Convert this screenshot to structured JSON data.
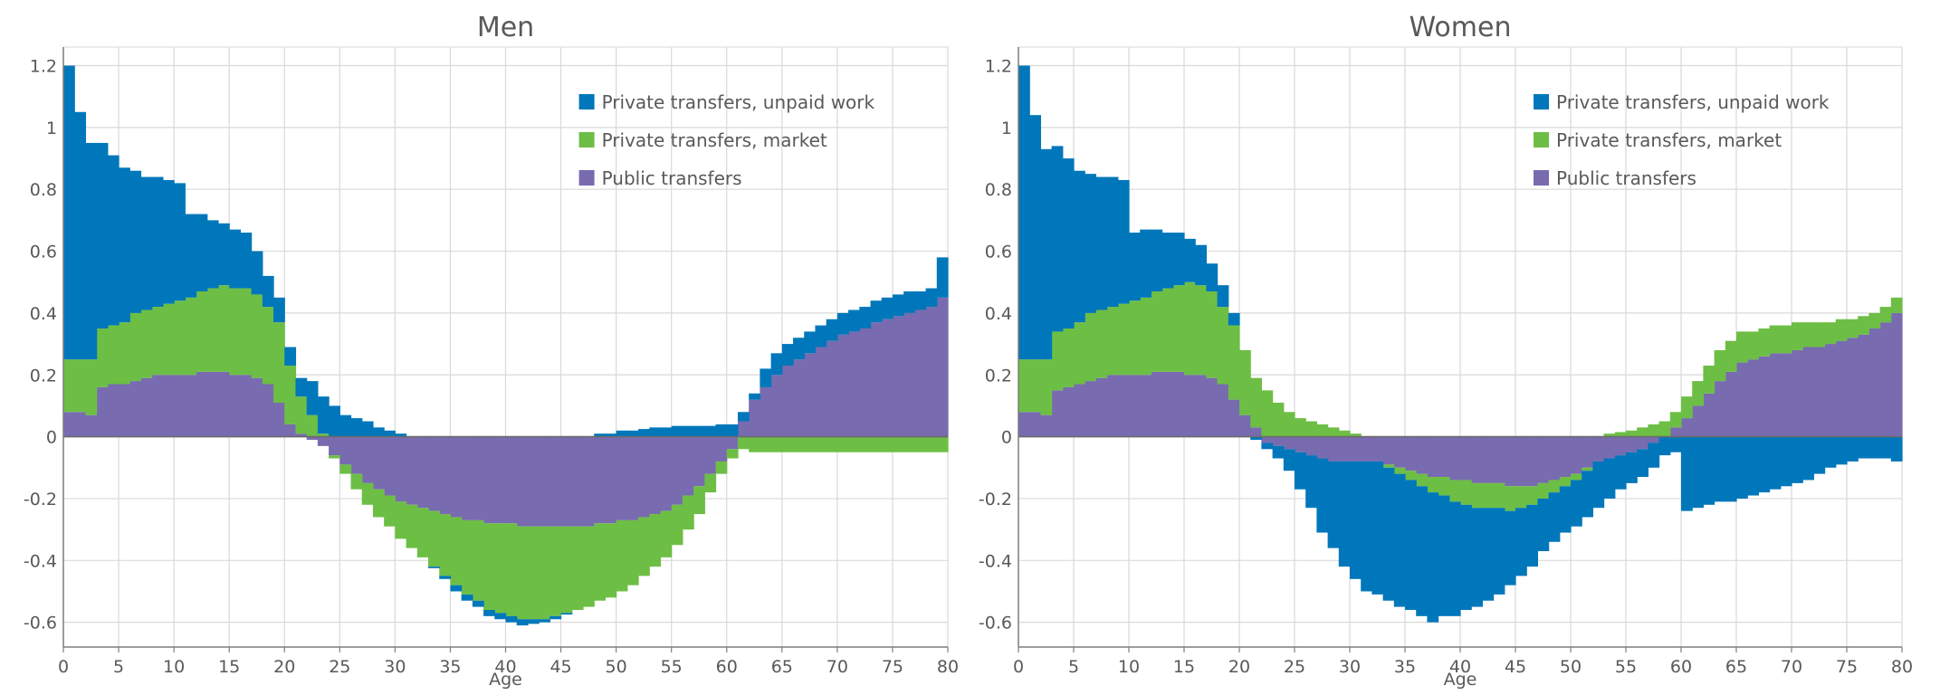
{
  "colors": {
    "unpaid": "#0077bb",
    "market": "#6dbe45",
    "public": "#786bb0",
    "grid": "#d9d9d9",
    "axis": "#7f7f7f",
    "text": "#595959"
  },
  "chart_data": [
    {
      "type": "bar",
      "stacked": true,
      "title": "Men",
      "xlabel": "Age",
      "ylabel": "",
      "xlim": [
        0,
        80
      ],
      "ylim": [
        -0.68,
        1.26
      ],
      "xticks": [
        "0",
        "5",
        "10",
        "15",
        "20",
        "25",
        "30",
        "35",
        "40",
        "45",
        "50",
        "55",
        "60",
        "65",
        "70",
        "75",
        "80"
      ],
      "yticks": [
        "1.2",
        "1",
        "0.8",
        "0.6",
        "0.4",
        "0.2",
        "0",
        "-0.2",
        "-0.4",
        "-0.6"
      ],
      "grid": true,
      "legend": "top-right",
      "x": [
        0,
        1,
        2,
        3,
        4,
        5,
        6,
        7,
        8,
        9,
        10,
        11,
        12,
        13,
        14,
        15,
        16,
        17,
        18,
        19,
        20,
        21,
        22,
        23,
        24,
        25,
        26,
        27,
        28,
        29,
        30,
        31,
        32,
        33,
        34,
        35,
        36,
        37,
        38,
        39,
        40,
        41,
        42,
        43,
        44,
        45,
        46,
        47,
        48,
        49,
        50,
        51,
        52,
        53,
        54,
        55,
        56,
        57,
        58,
        59,
        60,
        61,
        62,
        63,
        64,
        65,
        66,
        67,
        68,
        69,
        70,
        71,
        72,
        73,
        74,
        75,
        76,
        77,
        78,
        79
      ],
      "series": [
        {
          "name": "Public transfers",
          "color_key": "public",
          "values": [
            0.08,
            0.08,
            0.07,
            0.16,
            0.17,
            0.17,
            0.18,
            0.19,
            0.2,
            0.2,
            0.2,
            0.2,
            0.21,
            0.21,
            0.21,
            0.2,
            0.2,
            0.19,
            0.17,
            0.11,
            0.04,
            0.01,
            -0.01,
            -0.03,
            -0.06,
            -0.09,
            -0.12,
            -0.15,
            -0.17,
            -0.19,
            -0.21,
            -0.22,
            -0.23,
            -0.24,
            -0.25,
            -0.26,
            -0.27,
            -0.27,
            -0.28,
            -0.28,
            -0.28,
            -0.29,
            -0.29,
            -0.29,
            -0.29,
            -0.29,
            -0.29,
            -0.29,
            -0.28,
            -0.28,
            -0.27,
            -0.27,
            -0.26,
            -0.25,
            -0.24,
            -0.22,
            -0.19,
            -0.16,
            -0.12,
            -0.08,
            -0.04,
            0.05,
            0.12,
            0.16,
            0.2,
            0.23,
            0.25,
            0.27,
            0.29,
            0.31,
            0.33,
            0.34,
            0.35,
            0.37,
            0.38,
            0.39,
            0.4,
            0.41,
            0.42,
            0.45
          ]
        },
        {
          "name": "Private transfers, market",
          "color_key": "market",
          "values": [
            0.17,
            0.17,
            0.18,
            0.19,
            0.19,
            0.2,
            0.22,
            0.22,
            0.22,
            0.23,
            0.24,
            0.25,
            0.26,
            0.27,
            0.28,
            0.28,
            0.28,
            0.27,
            0.25,
            0.26,
            0.19,
            0.12,
            0.07,
            0.01,
            -0.01,
            -0.03,
            -0.05,
            -0.07,
            -0.09,
            -0.1,
            -0.12,
            -0.14,
            -0.16,
            -0.18,
            -0.2,
            -0.22,
            -0.24,
            -0.26,
            -0.28,
            -0.29,
            -0.3,
            -0.3,
            -0.3,
            -0.3,
            -0.29,
            -0.28,
            -0.27,
            -0.26,
            -0.25,
            -0.24,
            -0.23,
            -0.21,
            -0.19,
            -0.17,
            -0.15,
            -0.13,
            -0.11,
            -0.09,
            -0.06,
            -0.04,
            -0.03,
            -0.04,
            -0.05,
            -0.05,
            -0.05,
            -0.05,
            -0.05,
            -0.05,
            -0.05,
            -0.05,
            -0.05,
            -0.05,
            -0.05,
            -0.05,
            -0.05,
            -0.05,
            -0.05,
            -0.05,
            -0.05,
            -0.05
          ]
        },
        {
          "name": "Private transfers, unpaid work",
          "color_key": "unpaid",
          "values": [
            0.95,
            0.8,
            0.7,
            0.6,
            0.55,
            0.5,
            0.46,
            0.43,
            0.42,
            0.4,
            0.38,
            0.27,
            0.25,
            0.22,
            0.2,
            0.19,
            0.18,
            0.14,
            0.1,
            0.08,
            0.06,
            0.06,
            0.11,
            0.12,
            0.1,
            0.07,
            0.06,
            0.05,
            0.03,
            0.02,
            0.01,
            0.0,
            0.0,
            -0.005,
            -0.01,
            -0.02,
            -0.02,
            -0.02,
            -0.02,
            -0.02,
            -0.02,
            -0.02,
            -0.015,
            -0.01,
            -0.01,
            -0.005,
            0.0,
            0.0,
            0.01,
            0.01,
            0.02,
            0.02,
            0.025,
            0.03,
            0.03,
            0.035,
            0.035,
            0.035,
            0.035,
            0.04,
            0.04,
            0.03,
            0.02,
            0.06,
            0.07,
            0.07,
            0.07,
            0.07,
            0.07,
            0.07,
            0.07,
            0.07,
            0.07,
            0.07,
            0.07,
            0.07,
            0.07,
            0.06,
            0.06,
            0.13
          ]
        }
      ]
    },
    {
      "type": "bar",
      "stacked": true,
      "title": "Women",
      "xlabel": "Age",
      "ylabel": "",
      "xlim": [
        0,
        80
      ],
      "ylim": [
        -0.68,
        1.26
      ],
      "xticks": [
        "0",
        "5",
        "10",
        "15",
        "20",
        "25",
        "30",
        "35",
        "40",
        "45",
        "50",
        "55",
        "60",
        "65",
        "70",
        "75",
        "80"
      ],
      "yticks": [
        "1.2",
        "1",
        "0.8",
        "0.6",
        "0.4",
        "0.2",
        "0",
        "-0.2",
        "-0.4",
        "-0.6"
      ],
      "grid": true,
      "legend": "top-right",
      "x": [
        0,
        1,
        2,
        3,
        4,
        5,
        6,
        7,
        8,
        9,
        10,
        11,
        12,
        13,
        14,
        15,
        16,
        17,
        18,
        19,
        20,
        21,
        22,
        23,
        24,
        25,
        26,
        27,
        28,
        29,
        30,
        31,
        32,
        33,
        34,
        35,
        36,
        37,
        38,
        39,
        40,
        41,
        42,
        43,
        44,
        45,
        46,
        47,
        48,
        49,
        50,
        51,
        52,
        53,
        54,
        55,
        56,
        57,
        58,
        59,
        60,
        61,
        62,
        63,
        64,
        65,
        66,
        67,
        68,
        69,
        70,
        71,
        72,
        73,
        74,
        75,
        76,
        77,
        78,
        79
      ],
      "series": [
        {
          "name": "Public transfers",
          "color_key": "public",
          "values": [
            0.08,
            0.08,
            0.07,
            0.15,
            0.16,
            0.17,
            0.18,
            0.19,
            0.2,
            0.2,
            0.2,
            0.2,
            0.21,
            0.21,
            0.21,
            0.2,
            0.2,
            0.19,
            0.17,
            0.12,
            0.07,
            0.03,
            -0.02,
            -0.03,
            -0.04,
            -0.05,
            -0.06,
            -0.07,
            -0.08,
            -0.08,
            -0.08,
            -0.08,
            -0.08,
            -0.09,
            -0.1,
            -0.11,
            -0.12,
            -0.13,
            -0.13,
            -0.14,
            -0.14,
            -0.15,
            -0.15,
            -0.15,
            -0.16,
            -0.16,
            -0.16,
            -0.15,
            -0.14,
            -0.13,
            -0.12,
            -0.1,
            -0.08,
            -0.07,
            -0.06,
            -0.05,
            -0.04,
            -0.02,
            0.0,
            0.03,
            0.06,
            0.1,
            0.14,
            0.18,
            0.21,
            0.24,
            0.25,
            0.26,
            0.27,
            0.27,
            0.28,
            0.29,
            0.29,
            0.3,
            0.31,
            0.32,
            0.33,
            0.35,
            0.37,
            0.4
          ]
        },
        {
          "name": "Private transfers, market",
          "color_key": "market",
          "values": [
            0.17,
            0.17,
            0.18,
            0.19,
            0.19,
            0.2,
            0.22,
            0.22,
            0.22,
            0.23,
            0.24,
            0.25,
            0.26,
            0.27,
            0.28,
            0.3,
            0.29,
            0.28,
            0.25,
            0.24,
            0.21,
            0.16,
            0.15,
            0.11,
            0.08,
            0.06,
            0.05,
            0.04,
            0.03,
            0.02,
            0.01,
            0.0,
            0.0,
            -0.01,
            -0.02,
            -0.03,
            -0.04,
            -0.05,
            -0.06,
            -0.07,
            -0.08,
            -0.08,
            -0.08,
            -0.08,
            -0.08,
            -0.07,
            -0.06,
            -0.05,
            -0.04,
            -0.03,
            -0.02,
            -0.01,
            0.0,
            0.01,
            0.015,
            0.02,
            0.03,
            0.04,
            0.05,
            0.05,
            0.07,
            0.08,
            0.09,
            0.1,
            0.1,
            0.1,
            0.09,
            0.09,
            0.09,
            0.09,
            0.09,
            0.08,
            0.08,
            0.07,
            0.07,
            0.06,
            0.06,
            0.05,
            0.05,
            0.05
          ]
        },
        {
          "name": "Private transfers, unpaid work",
          "color_key": "unpaid",
          "values": [
            0.95,
            0.79,
            0.68,
            0.6,
            0.55,
            0.49,
            0.45,
            0.43,
            0.42,
            0.4,
            0.22,
            0.22,
            0.2,
            0.18,
            0.17,
            0.14,
            0.13,
            0.09,
            0.07,
            0.04,
            0.0,
            -0.01,
            -0.02,
            -0.04,
            -0.07,
            -0.12,
            -0.17,
            -0.24,
            -0.28,
            -0.34,
            -0.38,
            -0.42,
            -0.43,
            -0.43,
            -0.43,
            -0.42,
            -0.42,
            -0.42,
            -0.39,
            -0.37,
            -0.34,
            -0.32,
            -0.3,
            -0.28,
            -0.24,
            -0.22,
            -0.2,
            -0.17,
            -0.16,
            -0.15,
            -0.15,
            -0.15,
            -0.15,
            -0.13,
            -0.11,
            -0.1,
            -0.09,
            -0.08,
            -0.06,
            -0.05,
            -0.24,
            -0.23,
            -0.22,
            -0.21,
            -0.21,
            -0.2,
            -0.19,
            -0.18,
            -0.17,
            -0.16,
            -0.15,
            -0.14,
            -0.12,
            -0.1,
            -0.09,
            -0.08,
            -0.07,
            -0.07,
            -0.07,
            -0.08
          ]
        }
      ]
    }
  ],
  "legend_order": [
    "Private transfers, unpaid work",
    "Private transfers, market",
    "Public transfers"
  ]
}
